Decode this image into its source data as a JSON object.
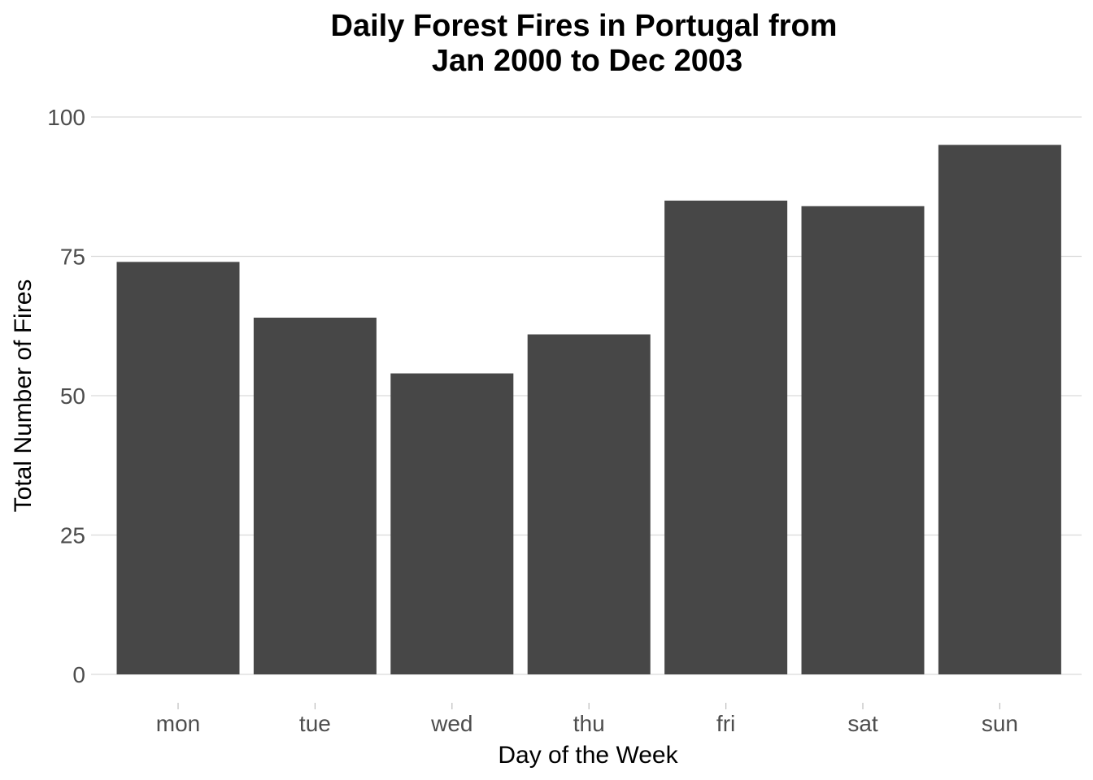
{
  "chart_data": {
    "type": "bar",
    "title_lines": [
      "Daily Forest Fires in Portugal from",
      "Jan 2000 to Dec 2003"
    ],
    "xlabel": "Day of the Week",
    "ylabel": "Total Number of Fires",
    "categories": [
      "mon",
      "tue",
      "wed",
      "thu",
      "fri",
      "sat",
      "sun"
    ],
    "values": [
      74,
      64,
      54,
      61,
      85,
      84,
      95
    ],
    "ylim": [
      0,
      100
    ],
    "yticks": [
      0,
      25,
      50,
      75,
      100
    ],
    "bar_color": "#474747",
    "grid": true
  }
}
